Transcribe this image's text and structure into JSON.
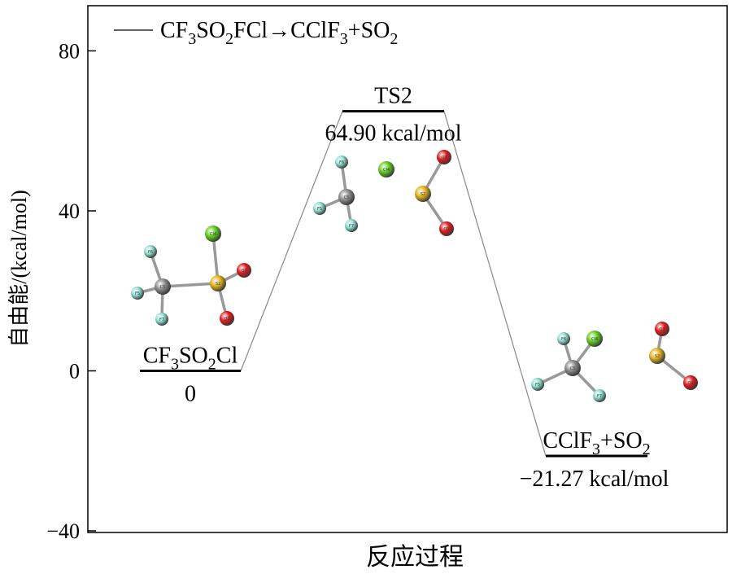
{
  "chart_data": {
    "type": "line",
    "title": "",
    "xlabel": "反应过程",
    "ylabel": "自由能/(kcal/mol)",
    "ylim": [
      -40,
      92
    ],
    "yticks": [
      -40,
      0,
      40,
      80
    ],
    "grid": false,
    "legend": {
      "position": "top-left",
      "parts": [
        {
          "t": "CF"
        },
        {
          "t": "3",
          "sub": true
        },
        {
          "t": "SO"
        },
        {
          "t": "2",
          "sub": true
        },
        {
          "t": "FCl→CClF"
        },
        {
          "t": "3",
          "sub": true
        },
        {
          "t": "+SO"
        },
        {
          "t": "2",
          "sub": true
        }
      ]
    },
    "series": [
      {
        "points": [
          {
            "x": 1,
            "y": 0,
            "label_parts": [
              {
                "t": "CF"
              },
              {
                "t": "3",
                "sub": true
              },
              {
                "t": "SO"
              },
              {
                "t": "2",
                "sub": true
              },
              {
                "t": "Cl"
              }
            ],
            "value_label": "0"
          },
          {
            "x": 2,
            "y": 64.9,
            "label_parts": [
              {
                "t": "TS2"
              }
            ],
            "value_label": "64.90 kcal/mol"
          },
          {
            "x": 3,
            "y": -21.27,
            "label_parts": [
              {
                "t": "CClF"
              },
              {
                "t": "3",
                "sub": true
              },
              {
                "t": "+SO"
              },
              {
                "t": "2",
                "sub": true
              }
            ],
            "value_label": "−21.27 kcal/mol"
          }
        ]
      }
    ]
  },
  "molecules": {
    "reactant": {
      "atoms": [
        {
          "id": "c",
          "label": "C5",
          "color": "#8c8c8c"
        },
        {
          "id": "s",
          "label": "S2",
          "color": "#e3b320"
        },
        {
          "id": "f1",
          "label": "F6",
          "color": "#8fe0d2"
        },
        {
          "id": "f2",
          "label": "F5",
          "color": "#8fe0d2"
        },
        {
          "id": "f3",
          "label": "F7",
          "color": "#8fe0d2"
        },
        {
          "id": "cl",
          "label": "Cl4",
          "color": "#5fcf20"
        },
        {
          "id": "o1",
          "label": "O3",
          "color": "#e31b1b"
        },
        {
          "id": "o2",
          "label": "O1",
          "color": "#e31b1b"
        }
      ]
    },
    "ts": {
      "atoms": [
        {
          "id": "c",
          "label": "C5",
          "color": "#8c8c8c"
        },
        {
          "id": "f1",
          "label": "F6",
          "color": "#8fe0d2"
        },
        {
          "id": "f2",
          "label": "F5",
          "color": "#8fe0d2"
        },
        {
          "id": "f3",
          "label": "F7",
          "color": "#8fe0d2"
        },
        {
          "id": "cl",
          "label": "Cl4",
          "color": "#5fcf20"
        },
        {
          "id": "s",
          "label": "S2",
          "color": "#e3b320"
        },
        {
          "id": "o1",
          "label": "O3",
          "color": "#e31b1b"
        },
        {
          "id": "o2",
          "label": "O1",
          "color": "#e31b1b"
        }
      ]
    },
    "product": {
      "atoms": [
        {
          "id": "c",
          "label": "C5",
          "color": "#8c8c8c"
        },
        {
          "id": "f1",
          "label": "F6",
          "color": "#8fe0d2"
        },
        {
          "id": "cl",
          "label": "Cl4",
          "color": "#5fcf20"
        },
        {
          "id": "f2",
          "label": "F5",
          "color": "#8fe0d2"
        },
        {
          "id": "f3",
          "label": "F7",
          "color": "#8fe0d2"
        },
        {
          "id": "o1",
          "label": "O3",
          "color": "#e31b1b"
        },
        {
          "id": "s",
          "label": "S2",
          "color": "#e3b320"
        },
        {
          "id": "o2",
          "label": "O1",
          "color": "#e31b1b"
        }
      ]
    }
  }
}
